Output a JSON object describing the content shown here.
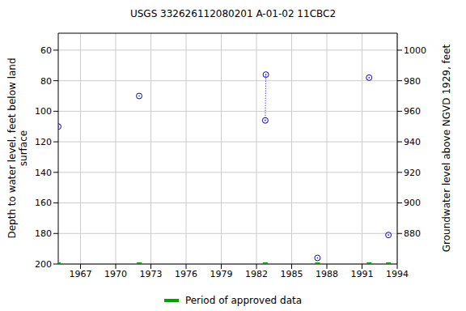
{
  "chart_data": {
    "type": "scatter",
    "title": "USGS 332626112080201 A-01-02 11CBC2",
    "x_label": "",
    "y_label": "Depth to water level, feet below land\nsurface",
    "y2_label": "Groundwater level above NGVD 1929, feet",
    "xlim": [
      1965.1,
      1994
    ],
    "xticks": [
      1967,
      1970,
      1973,
      1976,
      1979,
      1982,
      1985,
      1988,
      1991,
      1994
    ],
    "ylim": [
      48.9,
      200
    ],
    "yticks": [
      60,
      80,
      100,
      120,
      140,
      160,
      180,
      200
    ],
    "y2lim": [
      860,
      1011.1
    ],
    "y2ticks": [
      880,
      900,
      920,
      940,
      960,
      980,
      1000
    ],
    "grid": true,
    "legend": "bottom",
    "series": [
      {
        "x": [
          1965.1,
          1972.0,
          1987.2,
          1991.6,
          1993.25
        ],
        "values": [
          110,
          90,
          196,
          78,
          181
        ],
        "color": "#0000cc",
        "marker": "circle"
      },
      {
        "x": [
          1982.75,
          1982.8
        ],
        "values": [
          106,
          76
        ],
        "color": "#0000cc",
        "marker": "circle",
        "line_style": "dotted"
      },
      {
        "name": "Period of approved data",
        "x": [
          1965.1,
          1972.0,
          1982.75,
          1987.2,
          1991.6,
          1993.25
        ],
        "values": [
          200,
          200,
          200,
          200,
          200,
          200
        ],
        "color": "#00a000",
        "marker": "square"
      }
    ]
  }
}
